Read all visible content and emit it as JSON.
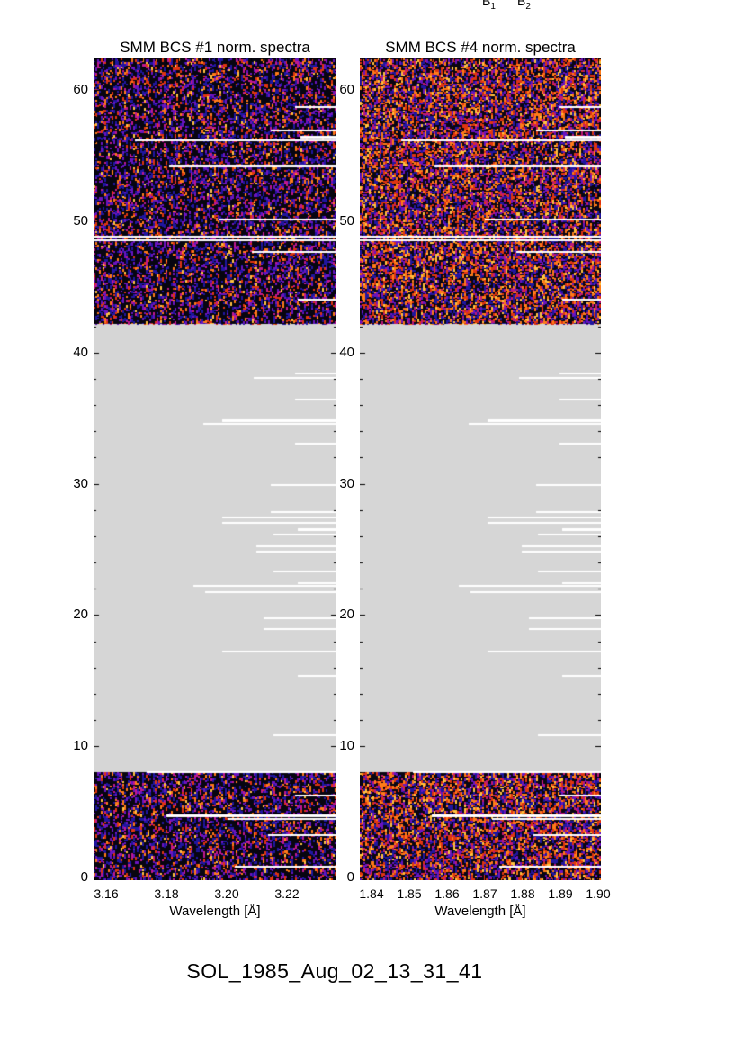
{
  "figure": {
    "caption": "SOL_1985_Aug_02_13_31_41",
    "background_color": "#ffffff",
    "text_color": "#000000"
  },
  "annotations": {
    "b1": {
      "base": "B",
      "sub": "1"
    },
    "b2": {
      "base": "B",
      "sub": "2"
    }
  },
  "chart_data": [
    {
      "type": "heatmap",
      "title": "SMM BCS #1 norm. spectra",
      "xlabel": "Wavelength [Å]",
      "ylabel": "",
      "xlim": [
        3.1558,
        3.2364
      ],
      "xticks": [
        "3.16",
        "3.18",
        "3.20",
        "3.22"
      ],
      "xtick_values": [
        3.16,
        3.18,
        3.2,
        3.22
      ],
      "x_minor_step": 0.004,
      "ylim": [
        -0.2,
        62.4
      ],
      "yticks": [
        "0",
        "10",
        "20",
        "30",
        "40",
        "50",
        "60"
      ],
      "ytick_values": [
        0,
        10,
        20,
        30,
        40,
        50,
        60
      ],
      "y_minor_step": 2,
      "grid": false,
      "legend": "none",
      "data_row_blocks": [
        [
          42.2,
          62.4
        ],
        [
          -0.2,
          8.0
        ]
      ],
      "no_data_color": "#d6d6d6",
      "tick_color": "#000000",
      "heatmap_style": {
        "background": "#070510",
        "speckle_colors": [
          "#2016a0",
          "#6a14c0",
          "#c01890",
          "#e03410",
          "#ff7b18",
          "#ffc240"
        ],
        "speckle_cdf": [
          0.34,
          0.56,
          0.68,
          0.83,
          0.96,
          1.0
        ],
        "density": 0.5,
        "seed": 12345
      },
      "white_gap_rows": [
        {
          "y": 58.8,
          "from": 0.83
        },
        {
          "y": 57.0,
          "from": 0.73
        },
        {
          "y": 56.5,
          "from": 0.85,
          "w": 3
        },
        {
          "y": 56.2,
          "from": 0.17
        },
        {
          "y": 54.3,
          "from": 0.31,
          "w": 3
        },
        {
          "y": 50.2,
          "from": 0.52
        },
        {
          "y": 48.9,
          "from": 0.0
        },
        {
          "y": 48.6,
          "from": 0.0
        },
        {
          "y": 47.7,
          "from": 0.65
        },
        {
          "y": 44.1,
          "from": 0.84
        },
        {
          "y": 38.5,
          "from": 0.83
        },
        {
          "y": 38.1,
          "from": 0.66
        },
        {
          "y": 36.5,
          "from": 0.83
        },
        {
          "y": 34.9,
          "from": 0.53,
          "w": 3
        },
        {
          "y": 34.6,
          "from": 0.45
        },
        {
          "y": 33.1,
          "from": 0.83
        },
        {
          "y": 30.0,
          "from": 0.73
        },
        {
          "y": 27.9,
          "from": 0.73
        },
        {
          "y": 27.5,
          "from": 0.53
        },
        {
          "y": 27.1,
          "from": 0.53
        },
        {
          "y": 26.6,
          "from": 0.84,
          "w": 3
        },
        {
          "y": 26.2,
          "from": 0.74
        },
        {
          "y": 25.3,
          "from": 0.67
        },
        {
          "y": 24.9,
          "from": 0.67
        },
        {
          "y": 23.4,
          "from": 0.74
        },
        {
          "y": 22.5,
          "from": 0.84
        },
        {
          "y": 22.3,
          "from": 0.41
        },
        {
          "y": 21.8,
          "from": 0.46
        },
        {
          "y": 19.8,
          "from": 0.7
        },
        {
          "y": 19.0,
          "from": 0.7
        },
        {
          "y": 17.3,
          "from": 0.53
        },
        {
          "y": 15.4,
          "from": 0.84
        },
        {
          "y": 10.9,
          "from": 0.74
        },
        {
          "y": 8.1,
          "from": 0.22
        },
        {
          "y": 6.3,
          "from": 0.83
        },
        {
          "y": 4.8,
          "from": 0.3,
          "w": 3
        },
        {
          "y": 4.5,
          "from": 0.55
        },
        {
          "y": 3.3,
          "from": 0.72
        },
        {
          "y": 0.9,
          "from": 0.58
        }
      ]
    },
    {
      "type": "heatmap",
      "title": "SMM BCS #4 norm. spectra",
      "xlabel": "Wavelength [Å]",
      "ylabel": "",
      "xlim": [
        1.8369,
        1.9007
      ],
      "xticks": [
        "1.84",
        "1.85",
        "1.86",
        "1.87",
        "1.88",
        "1.89",
        "1.90"
      ],
      "xtick_values": [
        1.84,
        1.85,
        1.86,
        1.87,
        1.88,
        1.89,
        1.9
      ],
      "x_minor_step": 0.002,
      "ylim": [
        -0.2,
        62.4
      ],
      "yticks": [
        "0",
        "10",
        "20",
        "30",
        "40",
        "50",
        "60"
      ],
      "ytick_values": [
        0,
        10,
        20,
        30,
        40,
        50,
        60
      ],
      "y_minor_step": 2,
      "grid": false,
      "legend": "none",
      "data_row_blocks": [
        [
          42.2,
          62.4
        ],
        [
          -0.2,
          8.0
        ]
      ],
      "no_data_color": "#d6d6d6",
      "tick_color": "#000000",
      "heatmap_style": {
        "background": "#0a0612",
        "speckle_colors": [
          "#2016a0",
          "#6a14c0",
          "#c01878",
          "#e03410",
          "#ff7b18",
          "#ffc240"
        ],
        "speckle_cdf": [
          0.24,
          0.4,
          0.5,
          0.7,
          0.91,
          1.0
        ],
        "density": 0.72,
        "seed": 98765
      },
      "white_gap_rows": [
        {
          "y": 58.8,
          "from": 0.83
        },
        {
          "y": 57.0,
          "from": 0.73
        },
        {
          "y": 56.5,
          "from": 0.85,
          "w": 3
        },
        {
          "y": 56.2,
          "from": 0.17
        },
        {
          "y": 54.3,
          "from": 0.31,
          "w": 3
        },
        {
          "y": 50.2,
          "from": 0.52
        },
        {
          "y": 48.9,
          "from": 0.0
        },
        {
          "y": 48.6,
          "from": 0.0
        },
        {
          "y": 47.7,
          "from": 0.65
        },
        {
          "y": 44.1,
          "from": 0.84
        },
        {
          "y": 38.5,
          "from": 0.83
        },
        {
          "y": 38.1,
          "from": 0.66
        },
        {
          "y": 36.5,
          "from": 0.83
        },
        {
          "y": 34.9,
          "from": 0.53,
          "w": 3
        },
        {
          "y": 34.6,
          "from": 0.45
        },
        {
          "y": 33.1,
          "from": 0.83
        },
        {
          "y": 30.0,
          "from": 0.73
        },
        {
          "y": 27.9,
          "from": 0.73
        },
        {
          "y": 27.5,
          "from": 0.53
        },
        {
          "y": 27.1,
          "from": 0.53
        },
        {
          "y": 26.6,
          "from": 0.84,
          "w": 3
        },
        {
          "y": 26.2,
          "from": 0.74
        },
        {
          "y": 25.3,
          "from": 0.67
        },
        {
          "y": 24.9,
          "from": 0.67
        },
        {
          "y": 23.4,
          "from": 0.74
        },
        {
          "y": 22.5,
          "from": 0.84
        },
        {
          "y": 22.3,
          "from": 0.41
        },
        {
          "y": 21.8,
          "from": 0.46
        },
        {
          "y": 19.8,
          "from": 0.7
        },
        {
          "y": 19.0,
          "from": 0.7
        },
        {
          "y": 17.3,
          "from": 0.53
        },
        {
          "y": 15.4,
          "from": 0.84
        },
        {
          "y": 10.9,
          "from": 0.74
        },
        {
          "y": 8.1,
          "from": 0.22
        },
        {
          "y": 6.3,
          "from": 0.83
        },
        {
          "y": 4.8,
          "from": 0.3,
          "w": 3
        },
        {
          "y": 4.5,
          "from": 0.55
        },
        {
          "y": 3.3,
          "from": 0.72
        },
        {
          "y": 0.9,
          "from": 0.58
        }
      ]
    }
  ]
}
